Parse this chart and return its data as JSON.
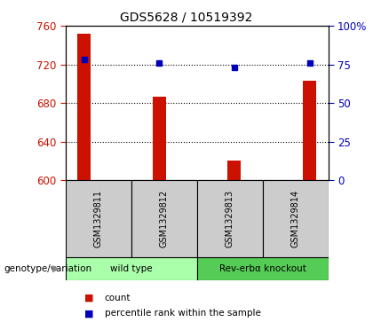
{
  "title": "GDS5628 / 10519392",
  "samples": [
    "GSM1329811",
    "GSM1329812",
    "GSM1329813",
    "GSM1329814"
  ],
  "bar_values": [
    752,
    687,
    620,
    703
  ],
  "percentile_values": [
    78,
    76,
    73,
    76
  ],
  "bar_color": "#cc1100",
  "dot_color": "#0000bb",
  "ylim_left": [
    600,
    760
  ],
  "ylim_right": [
    0,
    100
  ],
  "yticks_left": [
    600,
    640,
    680,
    720,
    760
  ],
  "yticks_right": [
    0,
    25,
    50,
    75,
    100
  ],
  "ytick_labels_right": [
    "0",
    "25",
    "50",
    "75",
    "100%"
  ],
  "groups": [
    {
      "label": "wild type",
      "indices": [
        0,
        1
      ],
      "color": "#aaffaa"
    },
    {
      "label": "Rev-erbα knockout",
      "indices": [
        2,
        3
      ],
      "color": "#55cc55"
    }
  ],
  "group_label": "genotype/variation",
  "legend_items": [
    {
      "color": "#cc1100",
      "label": "count"
    },
    {
      "color": "#0000bb",
      "label": "percentile rank within the sample"
    }
  ],
  "sample_box_color": "#cccccc",
  "plot_bg": "#ffffff"
}
